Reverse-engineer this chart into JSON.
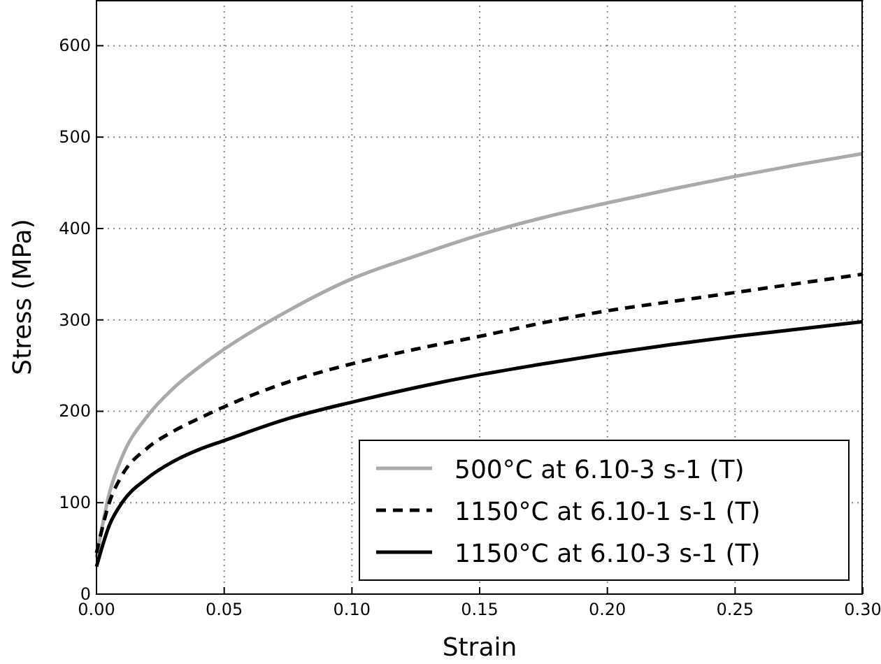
{
  "chart_data": {
    "type": "line",
    "xlabel": "Strain",
    "ylabel": "Stress (MPa)",
    "xlim": [
      0,
      0.3
    ],
    "xticks": [
      {
        "value": 0,
        "label": "0.00"
      },
      {
        "value": 0.05,
        "label": "0.05"
      },
      {
        "value": 0.1,
        "label": "0.10"
      },
      {
        "value": 0.15,
        "label": "0.15"
      },
      {
        "value": 0.2,
        "label": "0.20"
      },
      {
        "value": 0.25,
        "label": "0.25"
      },
      {
        "value": 0.3,
        "label": "0.30"
      }
    ],
    "ylim": [
      0,
      650
    ],
    "yticks": [
      0,
      100,
      200,
      300,
      400,
      500,
      600
    ],
    "grid": true,
    "legend": "bottom right",
    "x": [
      0,
      0.005,
      0.01,
      0.02,
      0.03,
      0.04,
      0.05,
      0.075,
      0.1,
      0.125,
      0.15,
      0.175,
      0.2,
      0.225,
      0.25,
      0.275,
      0.3
    ],
    "series": [
      {
        "name": "500°C at 6.10-3 s-1 (T)",
        "color": "#aaaaaa",
        "line_style": "solid",
        "values": [
          40,
          110,
          150,
          195,
          225,
          248,
          268,
          310,
          345,
          370,
          393,
          412,
          428,
          443,
          457,
          470,
          482
        ]
      },
      {
        "name": "1150°C at 6.10-1 s-1 (T)",
        "color": "#000000",
        "line_style": "dashed",
        "values": [
          45,
          100,
          130,
          160,
          178,
          192,
          205,
          232,
          252,
          268,
          282,
          297,
          310,
          320,
          330,
          340,
          350
        ]
      },
      {
        "name": "1150°C at 6.10-3 s-1 (T)",
        "color": "#000000",
        "line_style": "solid",
        "values": [
          30,
          75,
          100,
          127,
          145,
          158,
          168,
          192,
          210,
          226,
          240,
          252,
          263,
          273,
          282,
          290,
          298
        ]
      }
    ]
  }
}
